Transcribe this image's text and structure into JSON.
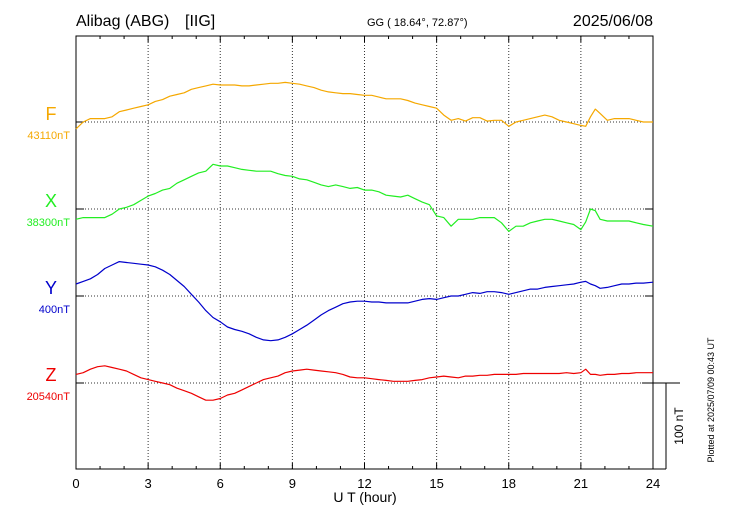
{
  "header": {
    "station": "Alibag (ABG)",
    "institute": "[IIG]",
    "coords": "GG ( 18.64°,  72.87°)",
    "date": "2025/06/08"
  },
  "footer": {
    "plotted": "Plotted at 2025/07/09 00:43 UT",
    "scale_label": "100 nT"
  },
  "chart_data": {
    "type": "line",
    "title": "Alibag (ABG)  [IIG]",
    "xlabel": "U T (hour)",
    "ylabel": "",
    "xlim": [
      0,
      24
    ],
    "x_ticks": [
      "0",
      "3",
      "6",
      "9",
      "12",
      "15",
      "18",
      "21",
      "24"
    ],
    "grid": true,
    "scale_bar_nT": 100,
    "series": [
      {
        "name": "F",
        "baseline_label": "43110nT",
        "color": "#f5a800",
        "baseline": 43110,
        "x": [
          0,
          0.3,
          0.6,
          0.9,
          1.2,
          1.5,
          1.8,
          2.1,
          2.4,
          2.7,
          3.0,
          3.3,
          3.6,
          3.9,
          4.2,
          4.5,
          4.8,
          5.1,
          5.4,
          5.7,
          6.0,
          6.3,
          6.6,
          6.9,
          7.2,
          7.5,
          7.8,
          8.1,
          8.4,
          8.7,
          9.0,
          9.3,
          9.6,
          9.9,
          10.2,
          10.5,
          10.8,
          11.1,
          11.4,
          11.7,
          12.0,
          12.3,
          12.6,
          12.9,
          13.2,
          13.5,
          13.8,
          14.1,
          14.4,
          14.7,
          15.0,
          15.3,
          15.6,
          15.9,
          16.2,
          16.5,
          16.8,
          17.1,
          17.4,
          17.7,
          18.0,
          18.3,
          18.6,
          18.9,
          19.2,
          19.5,
          19.8,
          20.1,
          20.4,
          20.7,
          21.0,
          21.2,
          21.4,
          21.6,
          21.8,
          22.1,
          22.4,
          22.7,
          23.0,
          23.3,
          23.6,
          24.0
        ],
        "y": [
          43102,
          43110,
          43114,
          43114,
          43114,
          43116,
          43122,
          43124,
          43126,
          43128,
          43130,
          43134,
          43136,
          43140,
          43142,
          43144,
          43148,
          43150,
          43152,
          43154,
          43153,
          43153,
          43153,
          43152,
          43152,
          43153,
          43154,
          43155,
          43155,
          43156,
          43155,
          43154,
          43152,
          43150,
          43147,
          43145,
          43144,
          43143,
          43143,
          43142,
          43141,
          43141,
          43139,
          43137,
          43137,
          43137,
          43135,
          43132,
          43130,
          43128,
          43126,
          43118,
          43112,
          43114,
          43111,
          43115,
          43115,
          43111,
          43112,
          43112,
          43105,
          43110,
          43112,
          43114,
          43116,
          43118,
          43116,
          43112,
          43110,
          43108,
          43106,
          43105,
          43116,
          43125,
          43120,
          43112,
          43114,
          43114,
          43114,
          43112,
          43110,
          43110
        ]
      },
      {
        "name": "X",
        "baseline_label": "38300nT",
        "color": "#22ee22",
        "baseline": 38300,
        "x": [
          0,
          0.3,
          0.6,
          0.9,
          1.2,
          1.5,
          1.8,
          2.1,
          2.4,
          2.7,
          3.0,
          3.3,
          3.6,
          3.9,
          4.2,
          4.5,
          4.8,
          5.1,
          5.4,
          5.7,
          6.0,
          6.3,
          6.6,
          6.9,
          7.2,
          7.5,
          7.8,
          8.1,
          8.4,
          8.7,
          9.0,
          9.3,
          9.6,
          9.9,
          10.2,
          10.5,
          10.8,
          11.1,
          11.4,
          11.7,
          12.0,
          12.3,
          12.6,
          12.9,
          13.2,
          13.5,
          13.8,
          14.1,
          14.4,
          14.7,
          15.0,
          15.3,
          15.6,
          15.9,
          16.2,
          16.5,
          16.8,
          17.1,
          17.4,
          17.7,
          18.0,
          18.3,
          18.6,
          18.9,
          19.2,
          19.5,
          19.8,
          20.1,
          20.4,
          20.7,
          21.0,
          21.2,
          21.4,
          21.6,
          21.8,
          22.1,
          22.4,
          22.7,
          23.0,
          23.3,
          23.6,
          24.0
        ],
        "y": [
          38288,
          38290,
          38290,
          38290,
          38290,
          38294,
          38300,
          38302,
          38305,
          38310,
          38315,
          38318,
          38322,
          38324,
          38330,
          38334,
          38338,
          38342,
          38344,
          38352,
          38350,
          38350,
          38348,
          38346,
          38345,
          38344,
          38344,
          38344,
          38341,
          38339,
          38338,
          38335,
          38334,
          38331,
          38328,
          38326,
          38328,
          38326,
          38324,
          38325,
          38322,
          38322,
          38320,
          38316,
          38315,
          38314,
          38316,
          38312,
          38308,
          38305,
          38292,
          38290,
          38280,
          38288,
          38288,
          38288,
          38290,
          38290,
          38290,
          38284,
          38274,
          38280,
          38280,
          38284,
          38286,
          38288,
          38288,
          38286,
          38284,
          38282,
          38276,
          38285,
          38300,
          38298,
          38288,
          38286,
          38286,
          38286,
          38286,
          38284,
          38282,
          38280
        ]
      },
      {
        "name": "Y",
        "baseline_label": "400nT",
        "color": "#0000cc",
        "baseline": 400,
        "x": [
          0,
          0.3,
          0.6,
          0.9,
          1.2,
          1.5,
          1.8,
          2.1,
          2.4,
          2.7,
          3.0,
          3.3,
          3.6,
          3.9,
          4.2,
          4.5,
          4.8,
          5.1,
          5.4,
          5.7,
          6.0,
          6.3,
          6.6,
          6.9,
          7.2,
          7.5,
          7.8,
          8.1,
          8.4,
          8.7,
          9.0,
          9.3,
          9.6,
          9.9,
          10.2,
          10.5,
          10.8,
          11.1,
          11.4,
          11.7,
          12.0,
          12.3,
          12.6,
          12.9,
          13.2,
          13.5,
          13.8,
          14.1,
          14.4,
          14.7,
          15.0,
          15.3,
          15.6,
          15.9,
          16.2,
          16.5,
          16.8,
          17.1,
          17.4,
          17.7,
          18.0,
          18.3,
          18.6,
          18.9,
          19.2,
          19.5,
          19.8,
          20.1,
          20.4,
          20.7,
          21.0,
          21.2,
          21.4,
          21.6,
          21.8,
          22.1,
          22.4,
          22.7,
          23.0,
          23.3,
          23.6,
          24.0
        ],
        "y": [
          414,
          417,
          420,
          425,
          432,
          436,
          440,
          439,
          438,
          437,
          436,
          434,
          430,
          425,
          418,
          411,
          402,
          393,
          383,
          375,
          370,
          364,
          361,
          359,
          356,
          352,
          349,
          348,
          349,
          352,
          356,
          361,
          366,
          372,
          378,
          383,
          387,
          391,
          393,
          394,
          394,
          393,
          393,
          392,
          392,
          392,
          392,
          394,
          396,
          397,
          396,
          398,
          400,
          400,
          402,
          404,
          403,
          405,
          405,
          404,
          402,
          404,
          406,
          408,
          408,
          410,
          411,
          412,
          413,
          414,
          416,
          417,
          414,
          412,
          409,
          410,
          412,
          414,
          414,
          415,
          415,
          416
        ]
      },
      {
        "name": "Z",
        "baseline_label": "20540nT",
        "color": "#ee0000",
        "baseline": 20540,
        "x": [
          0,
          0.3,
          0.6,
          0.9,
          1.2,
          1.5,
          1.8,
          2.1,
          2.4,
          2.7,
          3.0,
          3.3,
          3.6,
          3.9,
          4.2,
          4.5,
          4.8,
          5.1,
          5.4,
          5.7,
          6.0,
          6.3,
          6.6,
          6.9,
          7.2,
          7.5,
          7.8,
          8.1,
          8.4,
          8.7,
          9.0,
          9.3,
          9.6,
          9.9,
          10.2,
          10.5,
          10.8,
          11.1,
          11.4,
          11.7,
          12.0,
          12.3,
          12.6,
          12.9,
          13.2,
          13.5,
          13.8,
          14.1,
          14.4,
          14.7,
          15.0,
          15.3,
          15.6,
          15.9,
          16.2,
          16.5,
          16.8,
          17.1,
          17.4,
          17.7,
          18.0,
          18.3,
          18.6,
          18.9,
          19.2,
          19.5,
          19.8,
          20.1,
          20.4,
          20.7,
          21.0,
          21.2,
          21.4,
          21.6,
          21.8,
          22.1,
          22.4,
          22.7,
          23.0,
          23.3,
          23.6,
          24.0
        ],
        "y": [
          20550,
          20552,
          20556,
          20559,
          20560,
          20558,
          20556,
          20554,
          20550,
          20546,
          20544,
          20542,
          20540,
          20538,
          20534,
          20531,
          20528,
          20524,
          20520,
          20520,
          20522,
          20526,
          20528,
          20532,
          20536,
          20540,
          20544,
          20546,
          20548,
          20552,
          20554,
          20555,
          20556,
          20555,
          20554,
          20553,
          20552,
          20550,
          20547,
          20546,
          20546,
          20545,
          20544,
          20543,
          20542,
          20542,
          20542,
          20543,
          20544,
          20546,
          20547,
          20548,
          20547,
          20546,
          20548,
          20548,
          20549,
          20549,
          20550,
          20550,
          20550,
          20550,
          20551,
          20551,
          20551,
          20551,
          20551,
          20551,
          20552,
          20551,
          20552,
          20556,
          20550,
          20550,
          20549,
          20550,
          20550,
          20551,
          20551,
          20552,
          20552,
          20552
        ]
      }
    ]
  }
}
